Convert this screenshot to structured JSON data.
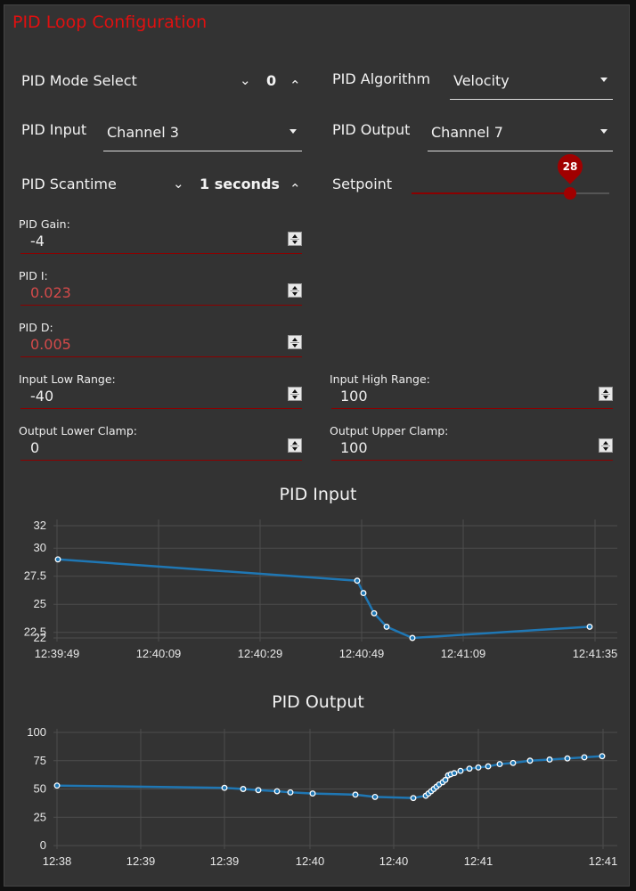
{
  "header": {
    "title": "PID Loop Configuration"
  },
  "controls": {
    "mode_select": {
      "label": "PID Mode Select",
      "value": "0"
    },
    "algorithm": {
      "label": "PID Algorithm",
      "value": "Velocity"
    },
    "input": {
      "label": "PID Input",
      "value": "Channel 3"
    },
    "output": {
      "label": "PID Output",
      "value": "Channel 7"
    },
    "scantime": {
      "label": "PID Scantime",
      "value": "1 seconds"
    },
    "setpoint": {
      "label": "Setpoint",
      "value": "28"
    }
  },
  "fields": {
    "gain": {
      "label": "PID Gain:",
      "value": "-4"
    },
    "i": {
      "label": "PID I:",
      "value": "0.023"
    },
    "d": {
      "label": "PID D:",
      "value": "0.005"
    },
    "input_low": {
      "label": "Input Low Range:",
      "value": "-40"
    },
    "input_high": {
      "label": "Input High Range:",
      "value": "100"
    },
    "out_lower": {
      "label": "Output Lower Clamp:",
      "value": "0"
    },
    "out_upper": {
      "label": "Output Upper Clamp:",
      "value": "100"
    }
  },
  "icons": {
    "down": "chevron-down-icon",
    "up": "chevron-up-icon",
    "caret": "caret-down-icon",
    "spin": "spinner-icon"
  },
  "colors": {
    "accent": "#8b0000",
    "title": "#e01010",
    "line": "#1f77b4",
    "panel": "#333333"
  },
  "chart_data": [
    {
      "type": "line",
      "title": "PID Input",
      "xlabel": "",
      "ylabel": "",
      "x_ticks": [
        "12:39:49",
        "12:40:09",
        "12:40:29",
        "12:40:49",
        "12:41:09",
        "12:41:35"
      ],
      "y_ticks": [
        22,
        22.5,
        25,
        27.5,
        30,
        32
      ],
      "ylim": [
        22,
        32
      ],
      "grid": true,
      "legend": "none",
      "series": [
        {
          "name": "PID Input",
          "x": [
            "12:39:49",
            "12:40:48",
            "12:40:49",
            "12:40:51",
            "12:40:54",
            "12:40:59",
            "12:41:34"
          ],
          "values": [
            29,
            27.1,
            26,
            24.2,
            23,
            22,
            23
          ]
        }
      ]
    },
    {
      "type": "line",
      "title": "PID Output",
      "xlabel": "",
      "ylabel": "",
      "x_ticks": [
        "12:38",
        "12:39",
        "12:39",
        "12:40",
        "12:40",
        "12:41",
        "12:41"
      ],
      "y_ticks": [
        0,
        25,
        50,
        75,
        100
      ],
      "ylim": [
        0,
        100
      ],
      "grid": true,
      "legend": "none",
      "series": [
        {
          "name": "PID Output",
          "values": [
            53,
            51,
            50,
            49,
            48,
            47,
            46,
            45,
            43,
            42,
            44,
            46,
            48,
            50,
            52,
            54,
            56,
            58,
            62,
            63,
            64,
            66,
            68,
            69,
            70,
            72,
            73,
            75,
            76,
            77,
            78,
            79
          ]
        }
      ]
    }
  ]
}
